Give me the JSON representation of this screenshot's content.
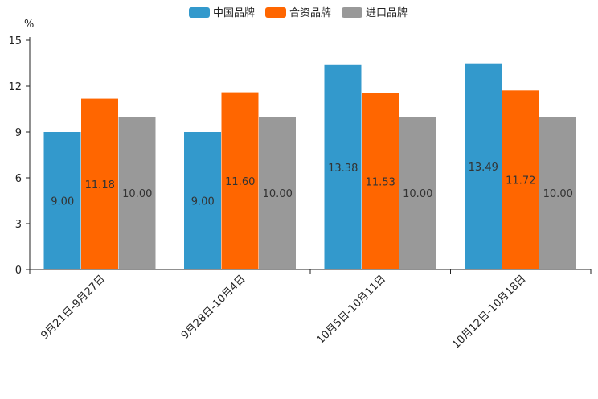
{
  "chart_data": {
    "type": "bar",
    "title": "",
    "ylabel": "%",
    "xlabel": "",
    "ylim": [
      0,
      15
    ],
    "yticks": [
      0,
      3,
      6,
      9,
      12,
      15
    ],
    "legend_position": "top-center",
    "categories": [
      "9月21日-9月27日",
      "9月28日-10月4日",
      "10月5日-10月11日",
      "10月12日-10月18日"
    ],
    "series": [
      {
        "name": "中国品牌",
        "color": "#3399cc",
        "values": [
          9.0,
          9.0,
          13.38,
          13.49
        ],
        "labels": [
          "9.00",
          "9.00",
          "13.38",
          "13.49"
        ]
      },
      {
        "name": "合资品牌",
        "color": "#ff6600",
        "values": [
          11.18,
          11.6,
          11.53,
          11.72
        ],
        "labels": [
          "11.18",
          "11.60",
          "11.53",
          "11.72"
        ]
      },
      {
        "name": "进口品牌",
        "color": "#999999",
        "values": [
          10.0,
          10.0,
          10.0,
          10.0
        ],
        "labels": [
          "10.00",
          "10.00",
          "10.00",
          "10.00"
        ]
      }
    ]
  }
}
